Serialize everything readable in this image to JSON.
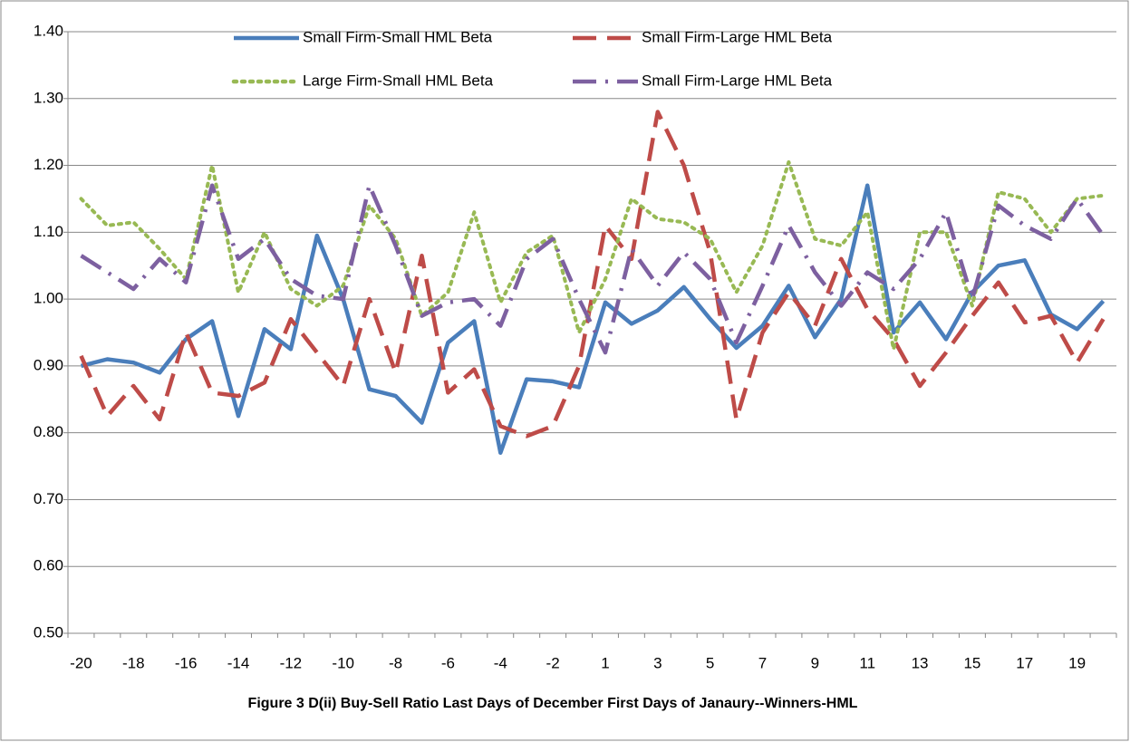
{
  "chart_data": {
    "type": "line",
    "title": "Figure 3 D(ii) Buy-Sell Ratio Last Days of December First Days of Janaury--Winners-HML",
    "categories": [
      -20,
      null,
      -18,
      null,
      -16,
      null,
      -14,
      null,
      -12,
      null,
      -10,
      null,
      -8,
      null,
      -6,
      null,
      -4,
      null,
      -2,
      null,
      1,
      null,
      3,
      null,
      5,
      null,
      7,
      null,
      9,
      null,
      11,
      null,
      13,
      null,
      15,
      null,
      17,
      null,
      19,
      null
    ],
    "ylim": [
      0.5,
      1.4
    ],
    "yticks": [
      {
        "value": 0.5,
        "label": "0.50"
      },
      {
        "value": 0.6,
        "label": "0.60"
      },
      {
        "value": 0.7,
        "label": "0.70"
      },
      {
        "value": 0.8,
        "label": "0.80"
      },
      {
        "value": 0.9,
        "label": "0.90"
      },
      {
        "value": 1.0,
        "label": "1.00"
      },
      {
        "value": 1.1,
        "label": "1.10"
      },
      {
        "value": 1.2,
        "label": "1.20"
      },
      {
        "value": 1.3,
        "label": "1.30"
      },
      {
        "value": 1.4,
        "label": "1.40"
      }
    ],
    "grid": true,
    "legend": "top",
    "series": [
      {
        "name": "Small Firm-Small HML Beta",
        "color": "#4a7ebb",
        "dash": "solid",
        "values": [
          0.9,
          0.91,
          0.905,
          0.89,
          0.94,
          0.967,
          0.825,
          0.955,
          0.925,
          1.095,
          1.0,
          0.865,
          0.855,
          0.815,
          0.935,
          0.967,
          0.77,
          0.88,
          0.877,
          0.868,
          0.995,
          0.963,
          0.983,
          1.018,
          0.97,
          0.927,
          0.96,
          1.02,
          0.943,
          1.0,
          1.17,
          0.95,
          0.995,
          0.94,
          1.01,
          1.05,
          1.058,
          0.977,
          0.955,
          0.997
        ]
      },
      {
        "name": "Small Firm-Large HML Beta",
        "color": "#be4b48",
        "dash": "dash",
        "values": [
          0.915,
          0.825,
          0.87,
          0.82,
          0.95,
          0.86,
          0.855,
          0.875,
          0.97,
          0.92,
          0.87,
          1.0,
          0.89,
          1.065,
          0.86,
          0.895,
          0.81,
          0.795,
          0.81,
          0.9,
          1.11,
          1.06,
          1.28,
          1.2,
          1.07,
          0.82,
          0.95,
          1.01,
          0.96,
          1.06,
          0.985,
          0.94,
          0.87,
          0.92,
          0.975,
          1.025,
          0.965,
          0.975,
          0.905,
          0.97
        ]
      },
      {
        "name": "Large Firm-Small HML Beta",
        "color": "#98b954",
        "dash": "dot",
        "values": [
          1.15,
          1.11,
          1.115,
          1.075,
          1.03,
          1.2,
          1.01,
          1.1,
          1.015,
          0.99,
          1.02,
          1.14,
          1.09,
          0.975,
          1.01,
          1.13,
          0.995,
          1.07,
          1.095,
          0.95,
          1.03,
          1.15,
          1.12,
          1.115,
          1.09,
          1.01,
          1.08,
          1.205,
          1.09,
          1.08,
          1.13,
          0.925,
          1.1,
          1.1,
          0.99,
          1.16,
          1.15,
          1.1,
          1.15,
          1.155
        ]
      },
      {
        "name": "Small Firm-Large HML Beta",
        "color": "#7d60a0",
        "dash": "dashdot",
        "values": [
          1.065,
          1.04,
          1.015,
          1.06,
          1.025,
          1.17,
          1.06,
          1.09,
          1.03,
          1.005,
          1.0,
          1.17,
          1.08,
          0.975,
          0.995,
          1.0,
          0.96,
          1.06,
          1.09,
          1.0,
          0.92,
          1.075,
          1.02,
          1.07,
          1.03,
          0.935,
          1.02,
          1.11,
          1.04,
          0.99,
          1.04,
          1.015,
          1.06,
          1.13,
          1.0,
          1.14,
          1.11,
          1.09,
          1.15,
          1.095
        ]
      }
    ]
  }
}
